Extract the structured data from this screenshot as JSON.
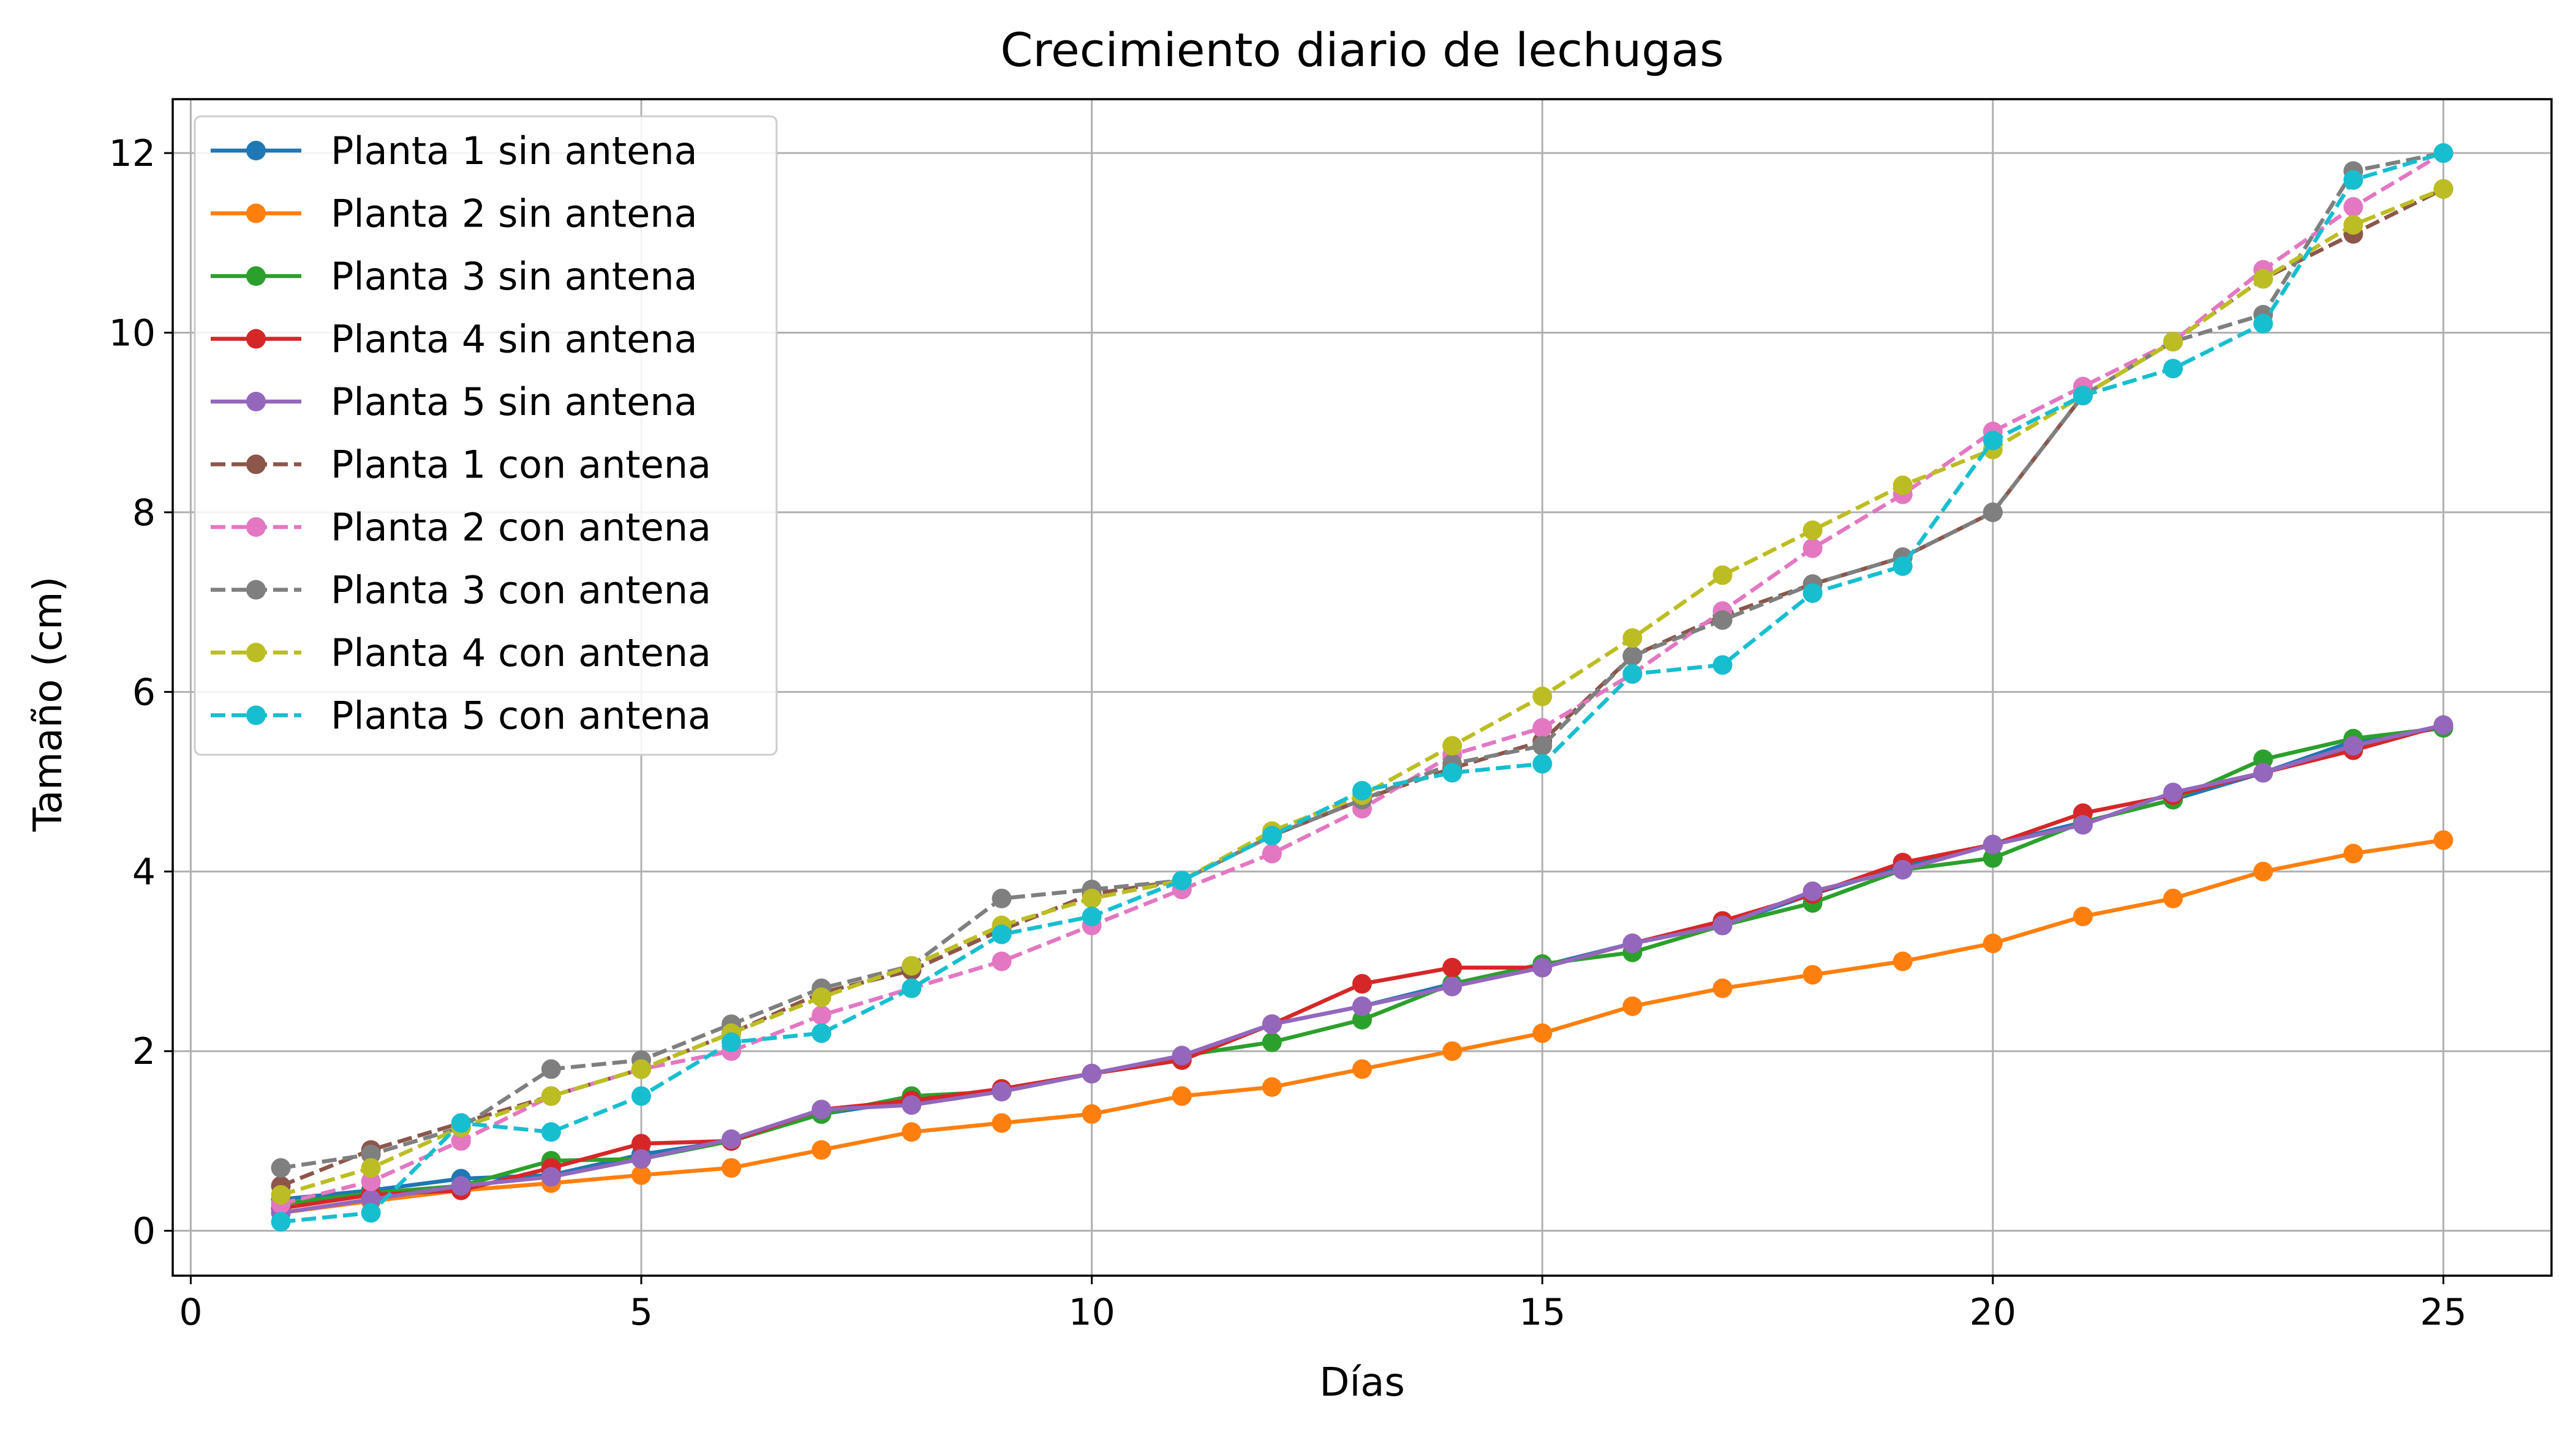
{
  "chart_data": {
    "type": "line",
    "title": "Crecimiento diario de lechugas",
    "xlabel": "Días",
    "ylabel": "Tamaño (cm)",
    "xlim": [
      -0.2,
      26.2
    ],
    "ylim": [
      -0.5,
      12.6
    ],
    "xticks": [
      0,
      5,
      10,
      15,
      20,
      25
    ],
    "yticks": [
      0,
      2,
      4,
      6,
      8,
      10,
      12
    ],
    "grid": true,
    "legend_position": "upper-left",
    "x": [
      1,
      2,
      3,
      4,
      5,
      6,
      7,
      8,
      9,
      10,
      11,
      12,
      13,
      14,
      15,
      16,
      17,
      18,
      19,
      20,
      21,
      22,
      23,
      24,
      25
    ],
    "series": [
      {
        "name": "Planta 1 sin antena",
        "color": "#1f77b4",
        "style": "solid",
        "values": [
          0.35,
          0.45,
          0.58,
          0.62,
          0.85,
          1.0,
          1.3,
          1.45,
          1.55,
          1.75,
          1.95,
          2.3,
          2.5,
          2.75,
          2.95,
          3.2,
          3.4,
          3.75,
          4.05,
          4.3,
          4.55,
          4.8,
          5.1,
          5.45,
          5.6
        ]
      },
      {
        "name": "Planta 2 sin antena",
        "color": "#ff7f0e",
        "style": "solid",
        "values": [
          0.2,
          0.33,
          0.45,
          0.53,
          0.62,
          0.7,
          0.9,
          1.1,
          1.2,
          1.3,
          1.5,
          1.6,
          1.8,
          2.0,
          2.2,
          2.5,
          2.7,
          2.85,
          3.0,
          3.2,
          3.5,
          3.7,
          4.0,
          4.2,
          4.35
        ]
      },
      {
        "name": "Planta 3 sin antena",
        "color": "#2ca02c",
        "style": "solid",
        "values": [
          0.3,
          0.42,
          0.5,
          0.78,
          0.8,
          1.0,
          1.3,
          1.5,
          1.55,
          1.75,
          1.95,
          2.1,
          2.35,
          2.75,
          2.97,
          3.1,
          3.4,
          3.65,
          4.02,
          4.15,
          4.55,
          4.8,
          5.25,
          5.48,
          5.6
        ]
      },
      {
        "name": "Planta 4 sin antena",
        "color": "#d62728",
        "style": "solid",
        "values": [
          0.25,
          0.4,
          0.45,
          0.7,
          0.97,
          1.0,
          1.35,
          1.45,
          1.58,
          1.75,
          1.9,
          2.3,
          2.75,
          2.93,
          2.93,
          3.2,
          3.45,
          3.75,
          4.1,
          4.3,
          4.65,
          4.85,
          5.1,
          5.35,
          5.63
        ]
      },
      {
        "name": "Planta 5 sin antena",
        "color": "#9467bd",
        "style": "solid",
        "values": [
          0.2,
          0.35,
          0.5,
          0.6,
          0.8,
          1.02,
          1.35,
          1.4,
          1.55,
          1.75,
          1.95,
          2.3,
          2.5,
          2.72,
          2.93,
          3.2,
          3.4,
          3.78,
          4.02,
          4.3,
          4.52,
          4.88,
          5.1,
          5.4,
          5.63
        ]
      },
      {
        "name": "Planta 1 con antena",
        "color": "#8c564b",
        "style": "dashed",
        "values": [
          0.5,
          0.9,
          1.2,
          1.5,
          1.8,
          2.2,
          2.65,
          2.9,
          3.35,
          3.75,
          3.9,
          4.4,
          4.8,
          5.15,
          5.45,
          6.4,
          6.85,
          7.2,
          7.5,
          8.0,
          9.3,
          9.9,
          10.6,
          11.1,
          11.6
        ]
      },
      {
        "name": "Planta 2 con antena",
        "color": "#e377c2",
        "style": "dashed",
        "values": [
          0.3,
          0.55,
          1.0,
          1.5,
          1.8,
          2.0,
          2.4,
          2.7,
          3.0,
          3.4,
          3.8,
          4.2,
          4.7,
          5.3,
          5.6,
          6.2,
          6.9,
          7.6,
          8.2,
          8.9,
          9.4,
          9.9,
          10.7,
          11.4,
          12.0
        ]
      },
      {
        "name": "Planta 3 con antena",
        "color": "#7f7f7f",
        "style": "dashed",
        "values": [
          0.7,
          0.85,
          1.15,
          1.8,
          1.9,
          2.3,
          2.7,
          2.95,
          3.7,
          3.8,
          3.9,
          4.4,
          4.8,
          5.2,
          5.4,
          6.4,
          6.8,
          7.2,
          7.5,
          8.0,
          9.3,
          9.9,
          10.2,
          11.8,
          12.0
        ]
      },
      {
        "name": "Planta 4 con antena",
        "color": "#bcbd22",
        "style": "dashed",
        "values": [
          0.4,
          0.7,
          1.15,
          1.5,
          1.8,
          2.2,
          2.6,
          2.95,
          3.4,
          3.7,
          3.9,
          4.45,
          4.85,
          5.4,
          5.95,
          6.6,
          7.3,
          7.8,
          8.3,
          8.7,
          9.3,
          9.9,
          10.6,
          11.2,
          11.6
        ]
      },
      {
        "name": "Planta 5 con antena",
        "color": "#17becf",
        "style": "dashed",
        "values": [
          0.1,
          0.2,
          1.2,
          1.1,
          1.5,
          2.1,
          2.2,
          2.7,
          3.3,
          3.5,
          3.9,
          4.4,
          4.9,
          5.1,
          5.2,
          6.2,
          6.3,
          7.1,
          7.4,
          8.8,
          9.3,
          9.6,
          10.1,
          11.7,
          12.0
        ]
      }
    ]
  }
}
